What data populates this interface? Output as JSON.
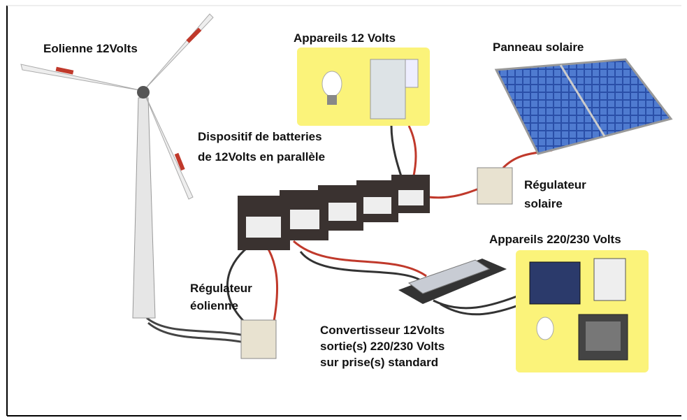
{
  "labels": [
    {
      "lines": [
        "Eolienne 12Volts"
      ]
    },
    {
      "lines": [
        "Appareils 12 Volts"
      ]
    },
    {
      "lines": [
        "Panneau solaire"
      ]
    },
    {
      "lines": [
        "Dispositif de batteries",
        "de 12Volts en parallèle"
      ]
    },
    {
      "lines": [
        "Régulateur",
        "solaire"
      ]
    },
    {
      "lines": [
        "Appareils 220/230 Volts"
      ]
    },
    {
      "lines": [
        "Régulateur",
        "éolienne"
      ]
    },
    {
      "lines": [
        "Convertisseur 12Volts",
        "sortie(s) 220/230 Volts",
        "sur prise(s) standard"
      ]
    }
  ]
}
